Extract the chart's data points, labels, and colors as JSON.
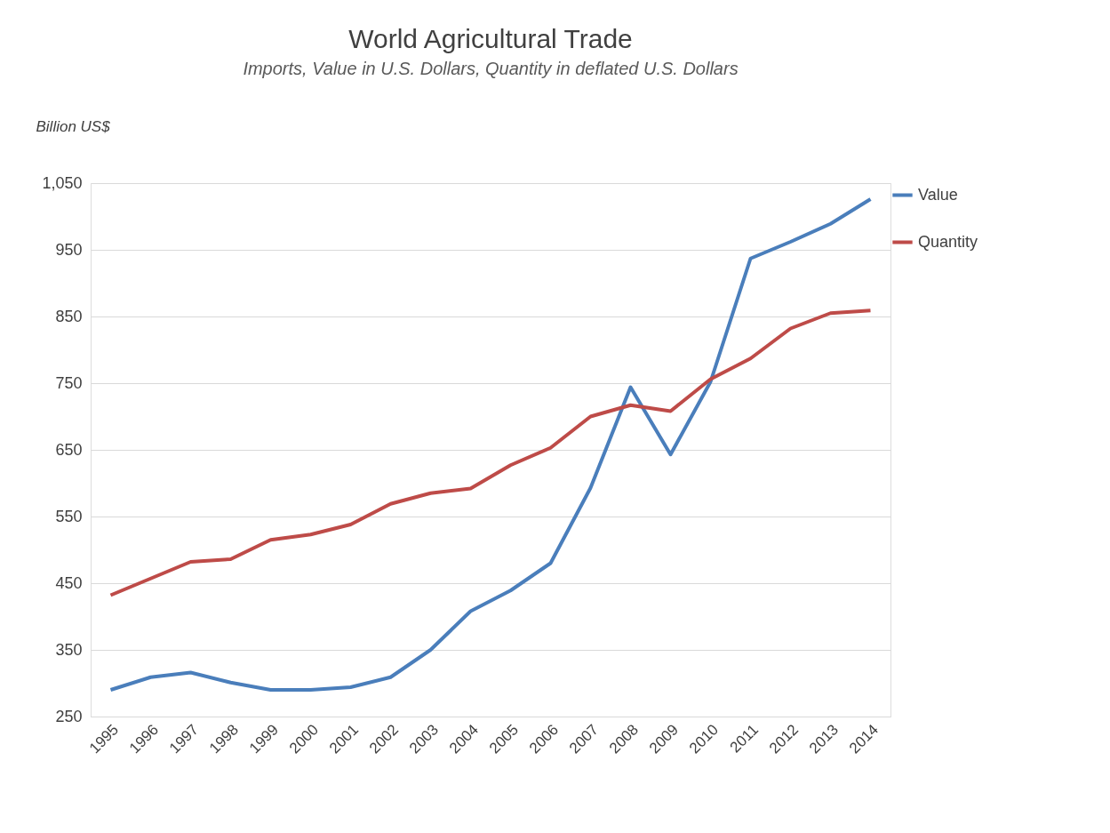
{
  "chart_data": {
    "type": "line",
    "title": "World Agricultural Trade",
    "subtitle": "Imports, Value in U.S. Dollars, Quantity in deflated U.S. Dollars",
    "ylabel": "Billion US$",
    "categories": [
      "1995",
      "1996",
      "1997",
      "1998",
      "1999",
      "2000",
      "2001",
      "2002",
      "2003",
      "2004",
      "2005",
      "2006",
      "2007",
      "2008",
      "2009",
      "2010",
      "2011",
      "2012",
      "2013",
      "2014"
    ],
    "series": [
      {
        "name": "Value",
        "color": "#4a7ebb",
        "values": [
          290,
          309,
          316,
          301,
          290,
          290,
          294,
          309,
          350,
          408,
          439,
          480,
          593,
          744,
          643,
          752,
          937,
          962,
          989,
          1026
        ]
      },
      {
        "name": "Quantity",
        "color": "#be4b48",
        "values": [
          432,
          457,
          482,
          486,
          515,
          523,
          538,
          569,
          585,
          592,
          627,
          653,
          700,
          717,
          708,
          756,
          787,
          832,
          855,
          859
        ]
      }
    ],
    "ylim": [
      250,
      1050
    ],
    "yticks": [
      250,
      350,
      450,
      550,
      650,
      750,
      850,
      950,
      {
        "value": 1050,
        "label": "1,050"
      }
    ],
    "grid": "y",
    "legend": "right",
    "marker": "none",
    "line_style": "solid"
  }
}
